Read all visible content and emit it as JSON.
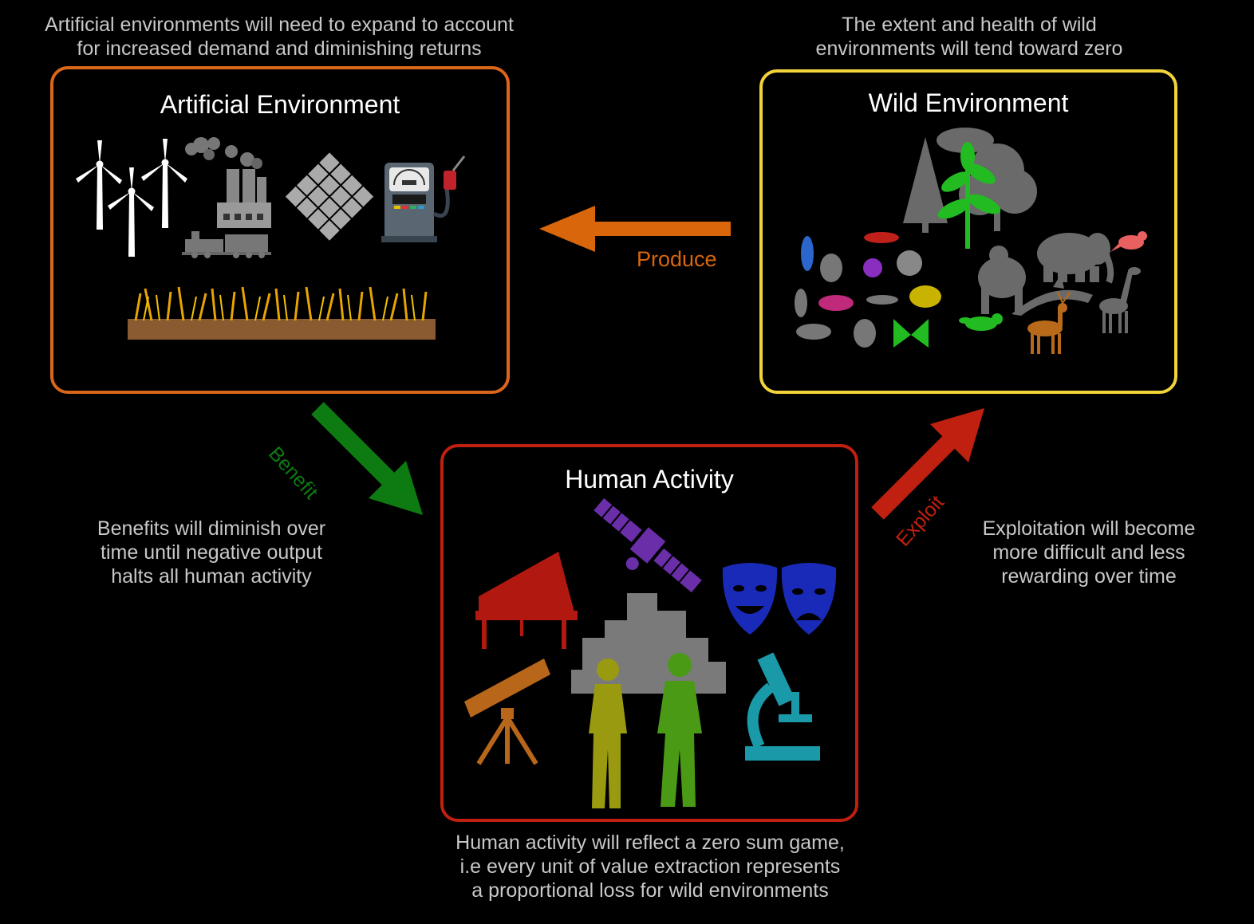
{
  "notes": {
    "artificial": "Artificial environments will need to expand to account\nfor increased demand and diminishing returns",
    "wild": "The extent and health of wild\nenvironments will tend toward zero",
    "benefit": "Benefits will diminish over\ntime until negative output\nhalts all human activity",
    "exploit": "Exploitation will become\nmore difficult and less\nrewarding over time",
    "human": "Human activity will reflect a zero sum game,\ni.e every unit of value extraction represents\na proportional loss for wild environments"
  },
  "boxes": {
    "artificial": {
      "title": "Artificial Environment",
      "color": "#d9661a"
    },
    "wild": {
      "title": "Wild Environment",
      "color": "#f2d43a"
    },
    "human": {
      "title": "Human Activity",
      "color": "#c0200f"
    }
  },
  "arrows": {
    "produce": {
      "label": "Produce",
      "color": "#d9660a"
    },
    "benefit": {
      "label": "Benefit",
      "color": "#0e7a12"
    },
    "exploit": {
      "label": "Exploit",
      "color": "#c0200f"
    }
  },
  "icons": {
    "artificial": [
      "wind-turbine-icon",
      "factory-icon",
      "solar-panel-icon",
      "fuel-pump-icon",
      "train-icon",
      "wheat-field-icon"
    ],
    "wild": [
      "tree-icon",
      "plant-icon",
      "insect-icon",
      "gorilla-icon",
      "elephant-icon",
      "bird-icon",
      "dolphin-icon",
      "deer-icon",
      "giraffe-icon",
      "raccoon-icon"
    ],
    "human": [
      "satellite-icon",
      "piano-icon",
      "city-skyline-icon",
      "theatre-masks-icon",
      "telescope-icon",
      "worker-icon",
      "microscope-icon"
    ]
  }
}
